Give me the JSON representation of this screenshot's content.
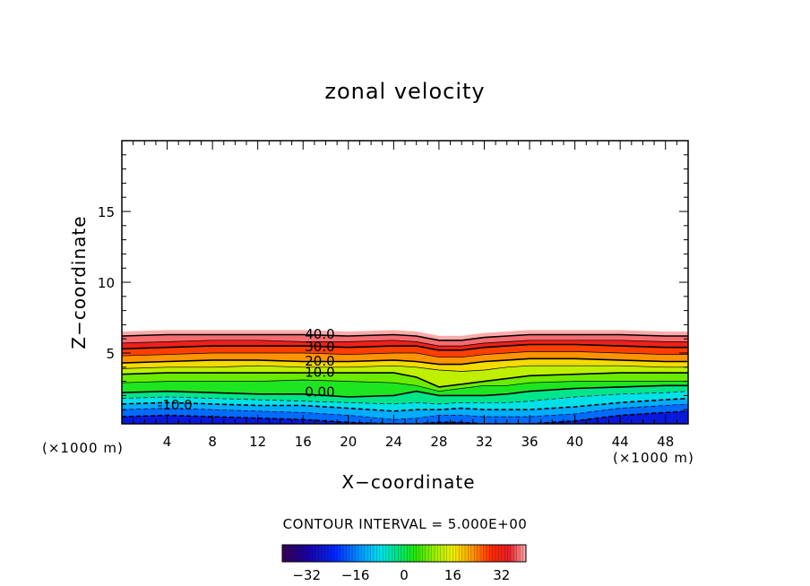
{
  "chart_data": {
    "type": "heatmap",
    "title": "zonal velocity",
    "xlabel": "X−coordinate",
    "ylabel": "Z−coordinate",
    "x_unit": "(×1000 m)",
    "xlim": [
      0,
      50
    ],
    "ylim": [
      0,
      20
    ],
    "x_ticks": [
      4,
      8,
      12,
      16,
      20,
      24,
      28,
      32,
      36,
      40,
      44,
      48
    ],
    "y_ticks": [
      5,
      10,
      15
    ],
    "grid": false,
    "value_range": [
      -40,
      40
    ],
    "contour_interval_label": "CONTOUR INTERVAL =  5.000E+00",
    "contour_interval": 5.0,
    "contour_labels": [
      {
        "text": "40.0",
        "x": 16.0,
        "z": 6.4
      },
      {
        "text": "30.0",
        "x": 16.0,
        "z": 5.5
      },
      {
        "text": "20.0",
        "x": 16.0,
        "z": 4.5
      },
      {
        "text": "10.0",
        "x": 16.0,
        "z": 3.7
      },
      {
        "text": "0.00",
        "x": 16.0,
        "z": 2.3
      },
      {
        "text": "-10.0",
        "x": 3.0,
        "z": 1.4
      }
    ],
    "field_x": [
      0,
      4,
      8,
      12,
      16,
      20,
      24,
      26,
      28,
      30,
      32,
      34,
      36,
      40,
      44,
      48,
      50
    ],
    "top_edge_z": [
      6.5,
      6.6,
      6.6,
      6.6,
      6.6,
      6.5,
      6.6,
      6.5,
      6.2,
      6.2,
      6.4,
      6.5,
      6.6,
      6.6,
      6.6,
      6.5,
      6.5
    ],
    "contours": [
      {
        "level": 40,
        "z": [
          6.2,
          6.3,
          6.3,
          6.3,
          6.3,
          6.2,
          6.3,
          6.2,
          5.9,
          5.9,
          6.1,
          6.2,
          6.3,
          6.3,
          6.3,
          6.2,
          6.2
        ]
      },
      {
        "level": 35,
        "z": [
          5.7,
          5.8,
          5.9,
          5.9,
          5.8,
          5.8,
          5.9,
          5.8,
          5.5,
          5.5,
          5.7,
          5.8,
          5.9,
          5.9,
          5.9,
          5.8,
          5.8
        ]
      },
      {
        "level": 30,
        "z": [
          5.3,
          5.4,
          5.5,
          5.5,
          5.5,
          5.4,
          5.5,
          5.5,
          5.2,
          5.2,
          5.4,
          5.5,
          5.6,
          5.6,
          5.5,
          5.4,
          5.4
        ]
      },
      {
        "level": 25,
        "z": [
          4.8,
          4.9,
          5.0,
          5.0,
          5.0,
          4.9,
          5.0,
          5.0,
          4.7,
          4.7,
          4.9,
          5.0,
          5.1,
          5.1,
          5.0,
          4.9,
          4.9
        ]
      },
      {
        "level": 20,
        "z": [
          4.3,
          4.4,
          4.5,
          4.5,
          4.4,
          4.4,
          4.5,
          4.4,
          4.2,
          4.2,
          4.4,
          4.5,
          4.6,
          4.6,
          4.5,
          4.4,
          4.4
        ]
      },
      {
        "level": 15,
        "z": [
          3.9,
          4.0,
          4.0,
          4.1,
          4.0,
          4.0,
          4.1,
          4.0,
          3.8,
          3.7,
          3.8,
          4.0,
          4.1,
          4.1,
          4.1,
          4.0,
          4.0
        ]
      },
      {
        "level": 10,
        "z": [
          3.5,
          3.6,
          3.6,
          3.6,
          3.6,
          3.6,
          3.6,
          3.3,
          2.6,
          2.8,
          3.0,
          3.2,
          3.4,
          3.5,
          3.6,
          3.6,
          3.6
        ]
      },
      {
        "level": 5,
        "z": [
          2.9,
          3.0,
          3.0,
          3.0,
          3.1,
          3.0,
          2.9,
          2.7,
          2.3,
          2.5,
          2.7,
          2.7,
          2.9,
          3.0,
          3.0,
          3.0,
          3.0
        ]
      },
      {
        "level": 0,
        "z": [
          2.2,
          2.3,
          2.2,
          2.1,
          2.1,
          1.9,
          2.0,
          2.3,
          2.0,
          2.0,
          2.0,
          2.1,
          2.3,
          2.5,
          2.6,
          2.7,
          2.7
        ]
      },
      {
        "level": -5,
        "z": [
          1.8,
          1.9,
          1.8,
          1.7,
          1.6,
          1.5,
          1.4,
          1.5,
          1.4,
          1.5,
          1.5,
          1.5,
          1.6,
          1.9,
          2.1,
          2.2,
          2.3
        ]
      },
      {
        "level": -10,
        "z": [
          1.4,
          1.5,
          1.4,
          1.3,
          1.3,
          1.1,
          0.9,
          1.0,
          1.0,
          1.1,
          1.0,
          1.0,
          1.0,
          1.2,
          1.5,
          1.7,
          1.8
        ]
      },
      {
        "level": -15,
        "z": [
          1.0,
          1.1,
          1.0,
          0.9,
          0.8,
          0.6,
          0.3,
          0.4,
          0.6,
          0.6,
          0.5,
          0.5,
          0.5,
          0.7,
          1.1,
          1.3,
          1.4
        ]
      },
      {
        "level": -20,
        "z": [
          0.5,
          0.6,
          0.5,
          0.4,
          0.3,
          0.1,
          0.0,
          0.0,
          0.1,
          0.1,
          0.0,
          0.0,
          0.0,
          0.2,
          0.6,
          0.8,
          0.9
        ]
      }
    ],
    "colorbar": {
      "min": -40,
      "max": 40,
      "ticks": [
        -32,
        -16,
        0,
        16,
        32
      ],
      "tick_labels": [
        "−32",
        "−16",
        "0",
        "16",
        "32"
      ]
    }
  }
}
